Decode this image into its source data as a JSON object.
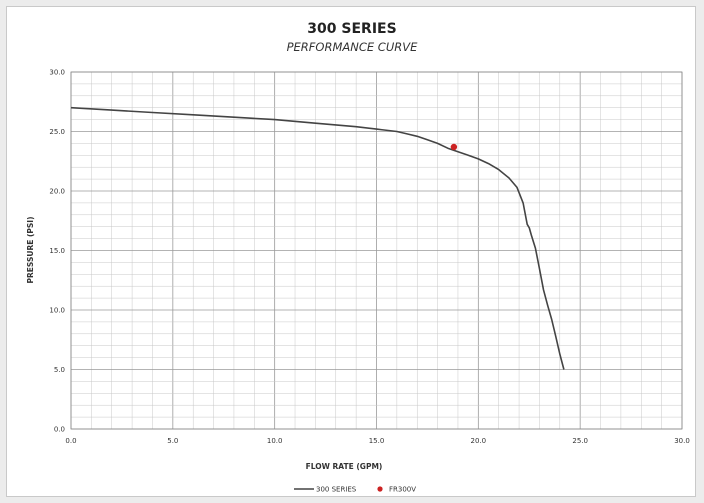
{
  "chart_data": {
    "type": "line",
    "title": "300 SERIES",
    "subtitle": "PERFORMANCE CURVE",
    "xlabel": "FLOW RATE (GPM)",
    "ylabel": "PRESSURE (PSI)",
    "xlim": [
      0,
      30
    ],
    "ylim": [
      0,
      30
    ],
    "xticks": [
      "0.0",
      "5.0",
      "10.0",
      "15.0",
      "20.0",
      "25.0",
      "30.0"
    ],
    "yticks": [
      "0.0",
      "5.0",
      "10.0",
      "15.0",
      "20.0",
      "25.0",
      "30.0"
    ],
    "grid": true,
    "legend_position": "bottom",
    "series": [
      {
        "name": "300 SERIES",
        "color": "#444444",
        "x": [
          0,
          2,
          4,
          6,
          8,
          10,
          12,
          14,
          15,
          16,
          16.5,
          17,
          17.5,
          18,
          18.5,
          19,
          19.5,
          20,
          20.5,
          21,
          21.5,
          21.9,
          22.2,
          22.4,
          22.5,
          22.6,
          22.8,
          23.0,
          23.2,
          23.4,
          23.6,
          23.8,
          24.0,
          24.2
        ],
        "y": [
          27.0,
          26.8,
          26.6,
          26.4,
          26.2,
          26.0,
          25.7,
          25.4,
          25.2,
          25.0,
          24.8,
          24.6,
          24.3,
          24.0,
          23.6,
          23.3,
          23.0,
          22.7,
          22.3,
          21.8,
          21.1,
          20.3,
          19.0,
          17.2,
          16.9,
          16.3,
          15.2,
          13.5,
          11.7,
          10.4,
          9.2,
          7.8,
          6.3,
          5.0
        ]
      }
    ],
    "points": [
      {
        "name": "FR300V",
        "color": "#cc2222",
        "x": 18.8,
        "y": 23.7
      }
    ]
  }
}
